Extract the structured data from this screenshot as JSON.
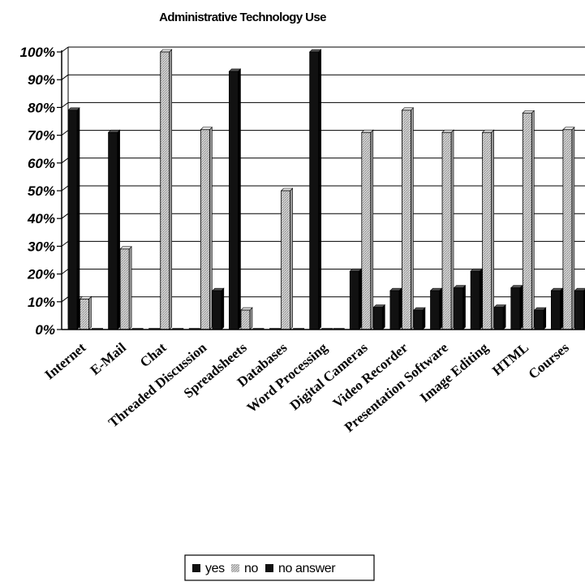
{
  "chart_data": {
    "type": "bar",
    "title": "Administrative Technology Use",
    "xlabel": "",
    "ylabel": "",
    "ylim": [
      0,
      100
    ],
    "ytick_labels": [
      "0%",
      "10%",
      "20%",
      "30%",
      "40%",
      "50%",
      "60%",
      "70%",
      "80%",
      "90%",
      "100%"
    ],
    "grid": true,
    "legend_position": "bottom-center",
    "categories": [
      "Internet",
      "E-Mail",
      "Chat",
      "Threaded Discussion",
      "Spreadsheets",
      "Databases",
      "Word Processing",
      "Digital Cameras",
      "Video Recorder",
      "Presentation Software",
      "Image Editing",
      "HTML",
      "Courses"
    ],
    "series": [
      {
        "name": "yes",
        "color": "#111111",
        "values": [
          79,
          71,
          0,
          0,
          93,
          0,
          100,
          21,
          14,
          14,
          21,
          15,
          14
        ]
      },
      {
        "name": "no",
        "color": "#c8c8c8",
        "values": [
          11,
          29,
          100,
          72,
          7,
          50,
          0,
          71,
          79,
          71,
          71,
          78,
          72
        ]
      },
      {
        "name": "no answer",
        "color": "#111111",
        "values": [
          0,
          0,
          0,
          14,
          0,
          0,
          0,
          8,
          7,
          15,
          8,
          7,
          14
        ]
      }
    ]
  }
}
